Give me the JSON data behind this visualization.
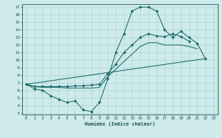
{
  "title": "",
  "xlabel": "Humidex (Indice chaleur)",
  "bg_color": "#ceeaea",
  "line_color": "#1a6b6b",
  "grid_color": "#aed4d4",
  "line1_x": [
    0,
    1,
    2,
    3,
    4,
    5,
    6,
    7,
    8,
    9,
    10,
    11,
    12,
    13,
    14,
    15,
    16,
    17,
    18,
    19,
    20,
    21,
    22
  ],
  "line1_y": [
    6.8,
    6.2,
    6.0,
    5.3,
    4.8,
    4.4,
    4.6,
    3.4,
    3.2,
    4.4,
    7.5,
    11.0,
    13.5,
    16.5,
    17.0,
    17.0,
    16.5,
    14.0,
    13.0,
    13.8,
    13.0,
    12.2,
    10.2
  ],
  "line2_x": [
    0,
    1,
    2,
    3,
    4,
    5,
    6,
    7,
    8,
    9,
    10,
    11,
    12,
    13,
    14,
    15,
    16,
    17,
    18,
    19,
    20
  ],
  "line2_y": [
    6.8,
    6.5,
    6.5,
    6.5,
    6.5,
    6.5,
    6.6,
    6.6,
    6.7,
    6.8,
    8.2,
    9.5,
    11.0,
    12.0,
    13.0,
    13.5,
    13.2,
    13.1,
    13.5,
    13.1,
    12.5
  ],
  "line3_x": [
    0,
    1,
    2,
    3,
    4,
    5,
    6,
    7,
    8,
    9,
    10,
    11,
    12,
    13,
    14,
    15,
    16,
    17,
    18,
    19,
    20,
    21
  ],
  "line3_y": [
    6.8,
    6.5,
    6.4,
    6.4,
    6.4,
    6.3,
    6.3,
    6.3,
    6.3,
    6.4,
    7.8,
    8.8,
    9.8,
    10.8,
    11.8,
    12.3,
    12.3,
    12.0,
    12.0,
    12.0,
    11.8,
    11.5
  ],
  "line4_x": [
    0,
    22
  ],
  "line4_y": [
    6.8,
    10.2
  ],
  "xlim": [
    -0.5,
    23.5
  ],
  "ylim": [
    2.8,
    17.4
  ],
  "xticks": [
    0,
    1,
    2,
    3,
    4,
    5,
    6,
    7,
    8,
    9,
    10,
    11,
    12,
    13,
    14,
    15,
    16,
    17,
    18,
    19,
    20,
    21,
    22,
    23
  ],
  "yticks": [
    3,
    4,
    5,
    6,
    7,
    8,
    9,
    10,
    11,
    12,
    13,
    14,
    15,
    16,
    17
  ]
}
